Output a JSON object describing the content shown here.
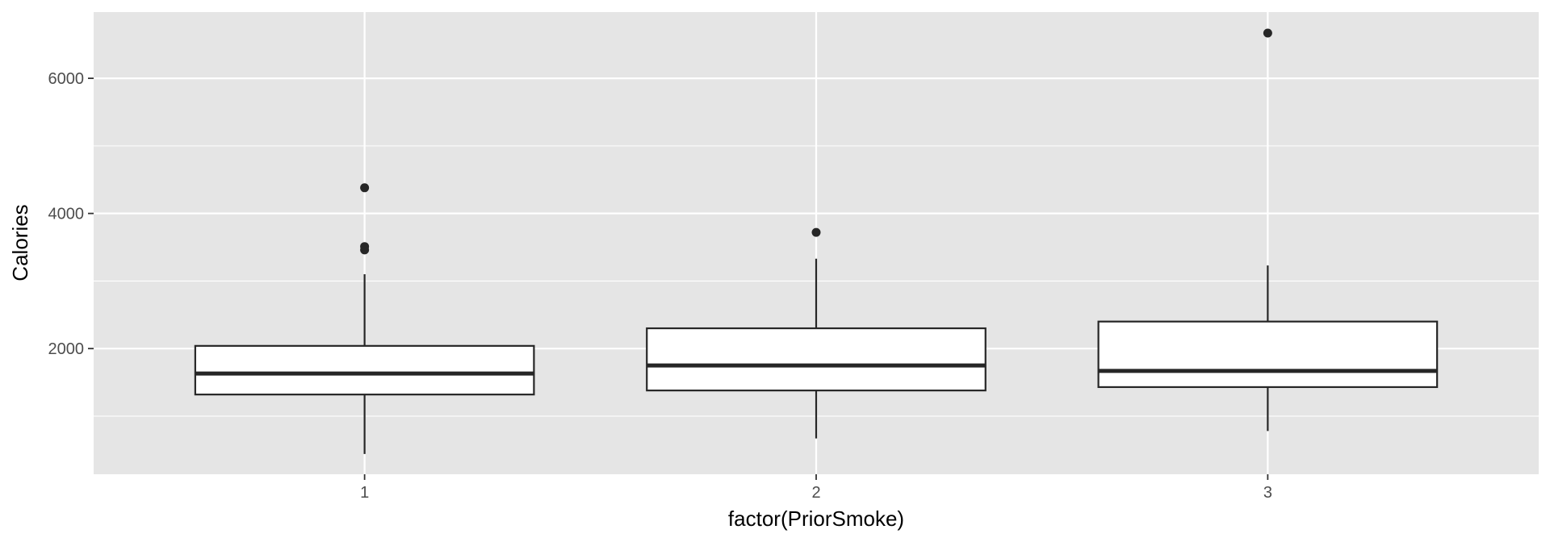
{
  "chart_data": {
    "type": "boxplot",
    "title": "",
    "xlabel": "factor(PriorSmoke)",
    "ylabel": "Calories",
    "categories": [
      "1",
      "2",
      "3"
    ],
    "ylim": [
      140,
      6980
    ],
    "y_ticks": [
      2000,
      4000,
      6000
    ],
    "y_minor_ticks": [
      1000,
      3000,
      5000
    ],
    "grid": true,
    "boxes": [
      {
        "category": "1",
        "whisker_low": 440,
        "q1": 1320,
        "median": 1630,
        "q3": 2040,
        "whisker_high": 3100,
        "outliers": [
          3460,
          3510,
          4380
        ]
      },
      {
        "category": "2",
        "whisker_low": 670,
        "q1": 1380,
        "median": 1750,
        "q3": 2300,
        "whisker_high": 3330,
        "outliers": [
          3720
        ]
      },
      {
        "category": "3",
        "whisker_low": 780,
        "q1": 1430,
        "median": 1670,
        "q3": 2400,
        "whisker_high": 3230,
        "outliers": [
          6670
        ]
      }
    ],
    "colors": {
      "panel_background": "#e5e5e5",
      "grid_major": "#ffffff",
      "box_fill": "#ffffff",
      "box_stroke": "#262626",
      "outlier": "#262626"
    }
  }
}
